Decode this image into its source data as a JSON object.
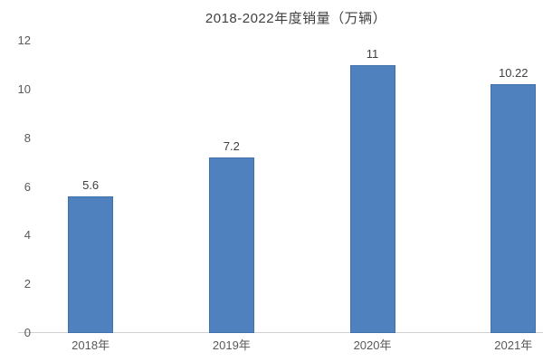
{
  "chart_data": {
    "type": "bar",
    "title": "2018-2022年度销量（万辆）",
    "categories": [
      "2018年",
      "2019年",
      "2020年",
      "2021年"
    ],
    "values": [
      5.6,
      7.2,
      11,
      10.22
    ],
    "value_labels": [
      "5.6",
      "7.2",
      "11",
      "10.22"
    ],
    "xlabel": "",
    "ylabel": "",
    "ylim": [
      0,
      12
    ],
    "y_ticks": [
      0,
      2,
      4,
      6,
      8,
      10,
      12
    ],
    "grid": false,
    "legend_position": "none",
    "colors": {
      "bar_fill": "#4E81BD",
      "axis_line": "#D0CECE",
      "tick_label": "#595959",
      "title_text": "#404040",
      "data_label": "#404040",
      "background": "#FFFFFF"
    }
  }
}
